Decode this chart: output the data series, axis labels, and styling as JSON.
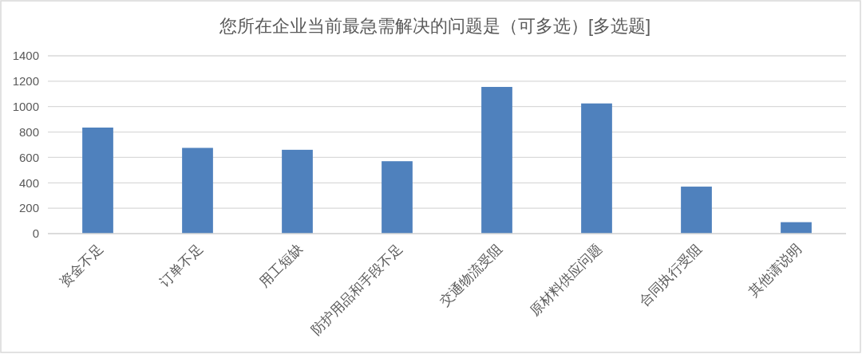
{
  "chart_data": {
    "type": "bar",
    "title": "您所在企业当前最急需解决的问题是（可多选）[多选题]",
    "categories": [
      "资金不足",
      "订单不足",
      "用工短缺",
      "防护用品和手段不足",
      "交通物流受阻",
      "原材料供应问题",
      "合同执行受阻",
      "其他请说明"
    ],
    "values": [
      835,
      675,
      660,
      570,
      1155,
      1025,
      370,
      90
    ],
    "color": "#4f81bd",
    "ylim": [
      0,
      1400
    ],
    "yticks": [
      0,
      200,
      400,
      600,
      800,
      1000,
      1200,
      1400
    ],
    "grid": "y"
  }
}
